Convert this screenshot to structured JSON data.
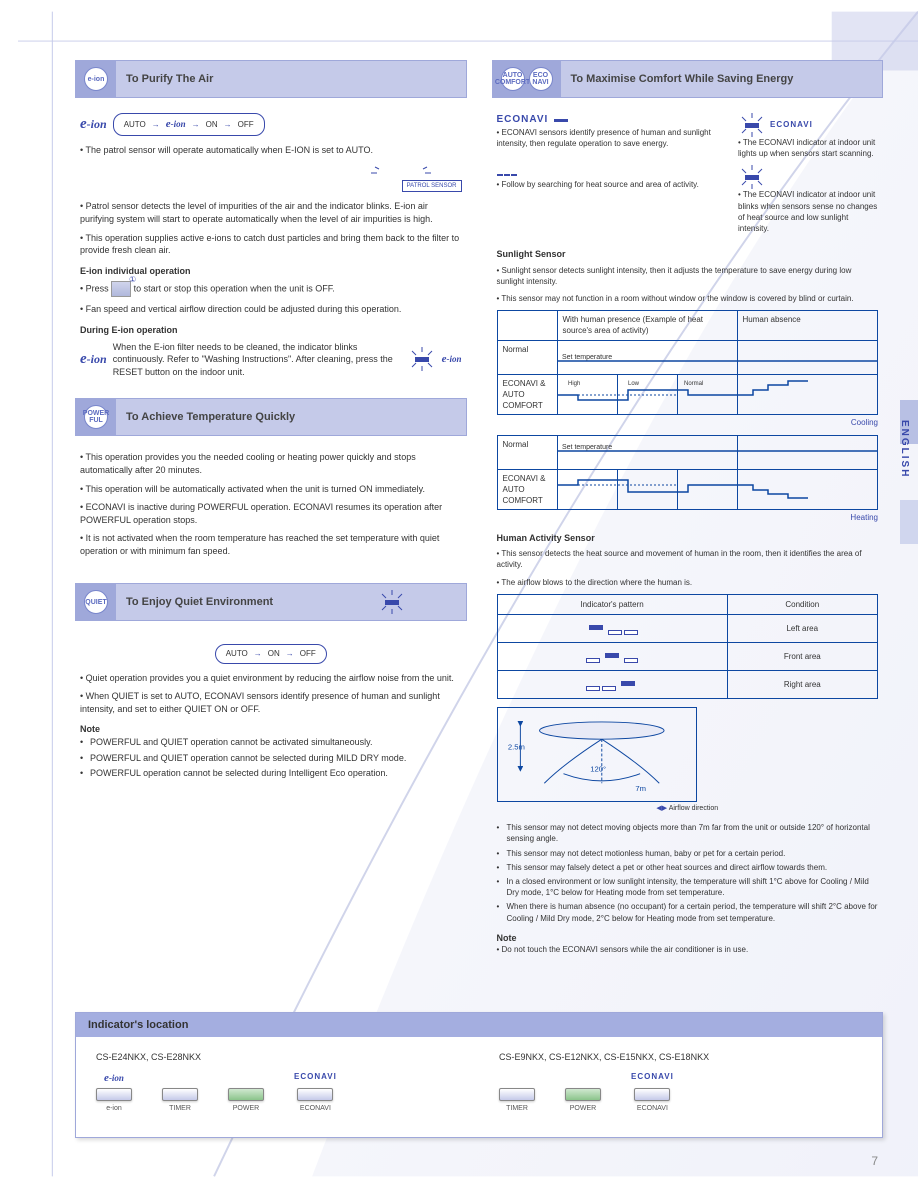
{
  "colors": {
    "accent": "#3949ab",
    "header_bg": "#c5cae9",
    "badge_bg": "#9fa8da",
    "border": "#0d47a1",
    "panel_header": "#a4aee0"
  },
  "left": {
    "sec1": {
      "badge": "e-ion",
      "title": "To Purify The Air",
      "flow": [
        "AUTO",
        "ON",
        "OFF"
      ],
      "p1": "• The patrol sensor will operate automatically when E-ION is set to AUTO.",
      "patrol": "PATROL SENSOR",
      "p2": "• Patrol sensor detects the level of impurities of the air and the indicator blinks. E-ion air purifying system will start to operate automatically when the level of air impurities is high.",
      "p3": "• This operation supplies active e-ions to catch dust particles and bring them back to the filter to provide fresh clean air.",
      "sub1h": "E-ion individual operation",
      "sub1p1": "• Press        to start or stop this operation when the unit is OFF.",
      "sub1p2": "• Fan speed and vertical airflow direction could be adjusted during this operation.",
      "sub2h": "During E-ion operation",
      "sub2p": "When the E-ion filter needs to be cleaned, the indicator blinks continuously. Refer to \"Washing Instructions\". After cleaning, press the RESET button on the indoor unit."
    },
    "sec2": {
      "badge": "POWER FUL",
      "title": "To Achieve Temperature Quickly",
      "p1": "• This operation provides you the needed cooling or heating power quickly and stops automatically after 20 minutes.",
      "p2": "• This operation will be automatically activated when the unit is turned ON immediately.",
      "p3": "• ECONAVI is inactive during POWERFUL operation. ECONAVI resumes its operation after POWERFUL operation stops.",
      "p4": "• It is not activated when the room temperature has reached the set temperature with quiet operation or with minimum fan speed."
    },
    "sec3": {
      "badge": "QUIET",
      "title": "To Enjoy Quiet Environment",
      "flow": [
        "AUTO",
        "ON",
        "OFF"
      ],
      "p1": "• Quiet operation provides you a quiet environment by reducing the airflow noise from the unit.",
      "p2": "• When QUIET is set to AUTO, ECONAVI sensors identify presence of human and sunlight intensity, and set to either QUIET ON or OFF.",
      "note_h": "Note",
      "notes": [
        "POWERFUL and QUIET operation cannot be activated simultaneously.",
        "POWERFUL and QUIET operation cannot be selected during MILD DRY mode.",
        "POWERFUL operation cannot be selected during Intelligent Eco operation."
      ]
    }
  },
  "right": {
    "sec4": {
      "badges": [
        "AUTO COMFORT",
        "ECO NAVI"
      ],
      "title": "To Maximise Comfort While Saving Energy",
      "row1l": "• ECONAVI sensors identify presence of human and sunlight intensity, then regulate operation to save energy.",
      "row1r": "• The ECONAVI indicator at indoor unit lights up when sensors start scanning.",
      "row2l": "• Follow by searching for heat source and area of activity.",
      "row2r": "• The ECONAVI indicator at indoor unit blinks when sensors sense no changes of heat source and low sunlight intensity.",
      "sunlight_h": "Sunlight Sensor",
      "sunlight_p": "• Sunlight sensor detects sunlight intensity, then it adjusts the temperature to save energy during low sunlight intensity.",
      "sunlight_p2": "• This sensor may not function in a room without window or the window is covered by blind or curtain.",
      "chart1": {
        "rows": [
          "Normal",
          "ECONAVI & AUTO COMFORT"
        ],
        "col_headers": [
          "With human presence (Example of heat source's area of activity)",
          "Human absence"
        ],
        "cond_labels": [
          "High activity",
          "Low activity",
          "Normal activity"
        ],
        "cooling_label": "Cooling",
        "set_temp": "Set temperature"
      },
      "chart2": {
        "rows": [
          "Normal",
          "ECONAVI & AUTO COMFORT"
        ],
        "heating_label": "Heating",
        "set_temp": "Set temperature"
      },
      "human_h": "Human Activity Sensor",
      "human_cols": [
        "Indicator's pattern",
        "Condition"
      ],
      "human_rows": [
        {
          "desc": "Left area"
        },
        {
          "desc": "Front area"
        },
        {
          "desc": "Right area"
        }
      ],
      "human_p1": "• This sensor detects the heat source and movement of human in the room, then it identifies the area of activity.",
      "human_p2": "• The airflow blows to the direction where the human is.",
      "diagram": {
        "height": "2.5m",
        "width": "7m",
        "angle": "120°",
        "caption": "Airflow direction"
      },
      "human_bullets": [
        "This sensor may not detect moving objects more than 7m far from the unit or outside 120° of horizontal sensing angle.",
        "This sensor may not detect motionless human, baby or pet for a certain period.",
        "This sensor may falsely detect a pet or other heat sources and direct airflow towards them.",
        "In a closed environment or low sunlight intensity, the temperature will shift 1°C above for Cooling / Mild Dry mode, 1°C below for Heating mode from set temperature.",
        "When there is human absence (no occupant) for a certain period, the temperature will shift 2°C above for Cooling / Mild Dry mode, 2°C below for Heating mode from set temperature."
      ],
      "note_h": "Note",
      "note_p": "• Do not touch the ECONAVI sensors while the air conditioner is in use."
    }
  },
  "bottom": {
    "title": "Indicator's location",
    "models": [
      {
        "name": "CS-E24NKX, CS-E28NKX",
        "indicators": [
          {
            "label": "e-ion",
            "below": "e-ion",
            "color": "blue"
          },
          {
            "label": "",
            "below": "TIMER",
            "color": "plain"
          },
          {
            "label": "",
            "below": "POWER",
            "color": "green"
          },
          {
            "label": "ECONAVI",
            "below": "ECONAVI",
            "color": "blue"
          }
        ]
      },
      {
        "name": "CS-E9NKX, CS-E12NKX, CS-E15NKX, CS-E18NKX",
        "indicators": [
          {
            "label": "",
            "below": "TIMER",
            "color": "plain"
          },
          {
            "label": "",
            "below": "POWER",
            "color": "green"
          },
          {
            "label": "ECONAVI",
            "below": "ECONAVI",
            "color": "blue"
          }
        ]
      }
    ]
  },
  "page_number": "7",
  "side_label": "ENGLISH"
}
